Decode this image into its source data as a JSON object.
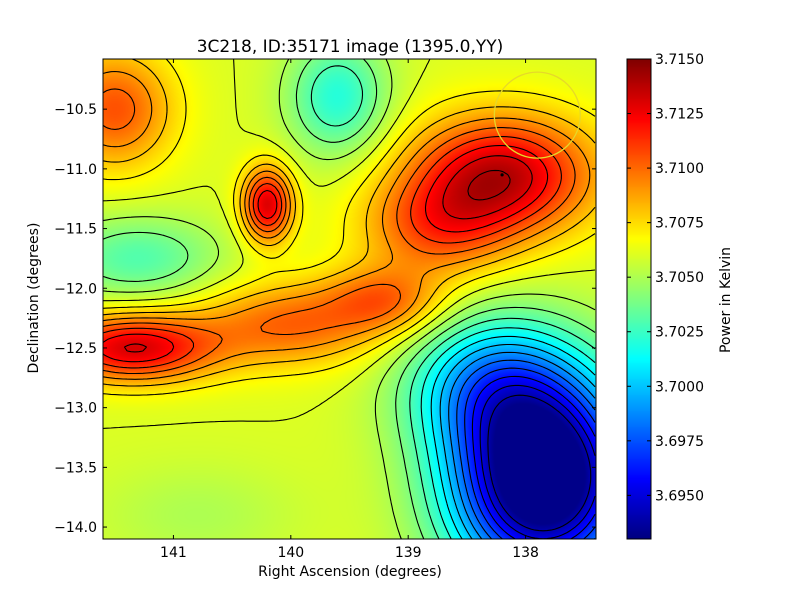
{
  "chart_data": {
    "type": "heatmap",
    "title": "3C218, ID:35171 image (1395.0,YY)",
    "xlabel": "Right Ascension (degrees)",
    "ylabel": "Declination (degrees)",
    "xlim": [
      141.6,
      137.4
    ],
    "ylim": [
      -14.1,
      -10.08
    ],
    "x_ticks": [
      141,
      140,
      139,
      138
    ],
    "x_tick_labels": [
      "141",
      "140",
      "139",
      "138"
    ],
    "y_ticks": [
      -10.5,
      -11.0,
      -11.5,
      -12.0,
      -12.5,
      -13.0,
      -13.5,
      -14.0
    ],
    "y_tick_labels": [
      "−10.5",
      "−11.0",
      "−11.5",
      "−12.0",
      "−12.5",
      "−13.0",
      "−13.5",
      "−14.0"
    ],
    "colorbar": {
      "label": "Power in Kelvin",
      "range": [
        3.693,
        3.715
      ],
      "ticks": [
        3.715,
        3.7125,
        3.71,
        3.7075,
        3.705,
        3.7025,
        3.7,
        3.6975,
        3.695
      ],
      "tick_labels": [
        "3.7150",
        "3.7125",
        "3.7100",
        "3.7075",
        "3.7050",
        "3.7025",
        "3.7000",
        "3.6975",
        "3.6950"
      ],
      "colormap": "jet"
    },
    "field": {
      "baseline": 3.706,
      "features": [
        {
          "ra": 138.2,
          "dec": -11.05,
          "amp": 0.0075,
          "sx": 0.55,
          "sy": 0.35,
          "kind": "hot"
        },
        {
          "ra": 138.75,
          "dec": -11.5,
          "amp": 0.004,
          "sx": 0.45,
          "sy": 0.3,
          "kind": "hot"
        },
        {
          "ra": 141.35,
          "dec": -12.5,
          "amp": 0.007,
          "sx": 0.5,
          "sy": 0.2,
          "kind": "hot"
        },
        {
          "ra": 140.2,
          "dec": -11.3,
          "amp": 0.007,
          "sx": 0.15,
          "sy": 0.22,
          "kind": "hot"
        },
        {
          "ra": 141.5,
          "dec": -10.5,
          "amp": 0.0045,
          "sx": 0.35,
          "sy": 0.35,
          "kind": "hot"
        },
        {
          "ra": 140.0,
          "dec": -12.3,
          "amp": 0.004,
          "sx": 0.55,
          "sy": 0.25,
          "kind": "hot"
        },
        {
          "ra": 139.2,
          "dec": -12.1,
          "amp": 0.0035,
          "sx": 0.35,
          "sy": 0.2,
          "kind": "hot"
        },
        {
          "ra": 139.6,
          "dec": -10.4,
          "amp": 0.004,
          "sx": 0.3,
          "sy": 0.35,
          "kind": "cold"
        },
        {
          "ra": 141.3,
          "dec": -11.75,
          "amp": 0.003,
          "sx": 0.5,
          "sy": 0.25,
          "kind": "cold"
        },
        {
          "ra": 137.85,
          "dec": -13.6,
          "amp": 0.0155,
          "sx": 0.55,
          "sy": 0.6,
          "kind": "cold"
        },
        {
          "ra": 138.3,
          "dec": -12.8,
          "amp": 0.0055,
          "sx": 0.5,
          "sy": 0.4,
          "kind": "cold"
        },
        {
          "ra": 140.8,
          "dec": -13.9,
          "amp": 0.001,
          "sx": 0.6,
          "sy": 0.3,
          "kind": "cold"
        }
      ]
    },
    "marker": {
      "ra": 138.2,
      "dec": -11.05
    },
    "circle": {
      "ra": 137.9,
      "dec": -10.55,
      "radius_deg": 0.36,
      "color": "#e6d82a"
    },
    "contour_levels": [
      3.694,
      3.695,
      3.696,
      3.697,
      3.698,
      3.699,
      3.7,
      3.701,
      3.702,
      3.703,
      3.704,
      3.705,
      3.706,
      3.707,
      3.708,
      3.709,
      3.71,
      3.711,
      3.712,
      3.713,
      3.714
    ]
  }
}
